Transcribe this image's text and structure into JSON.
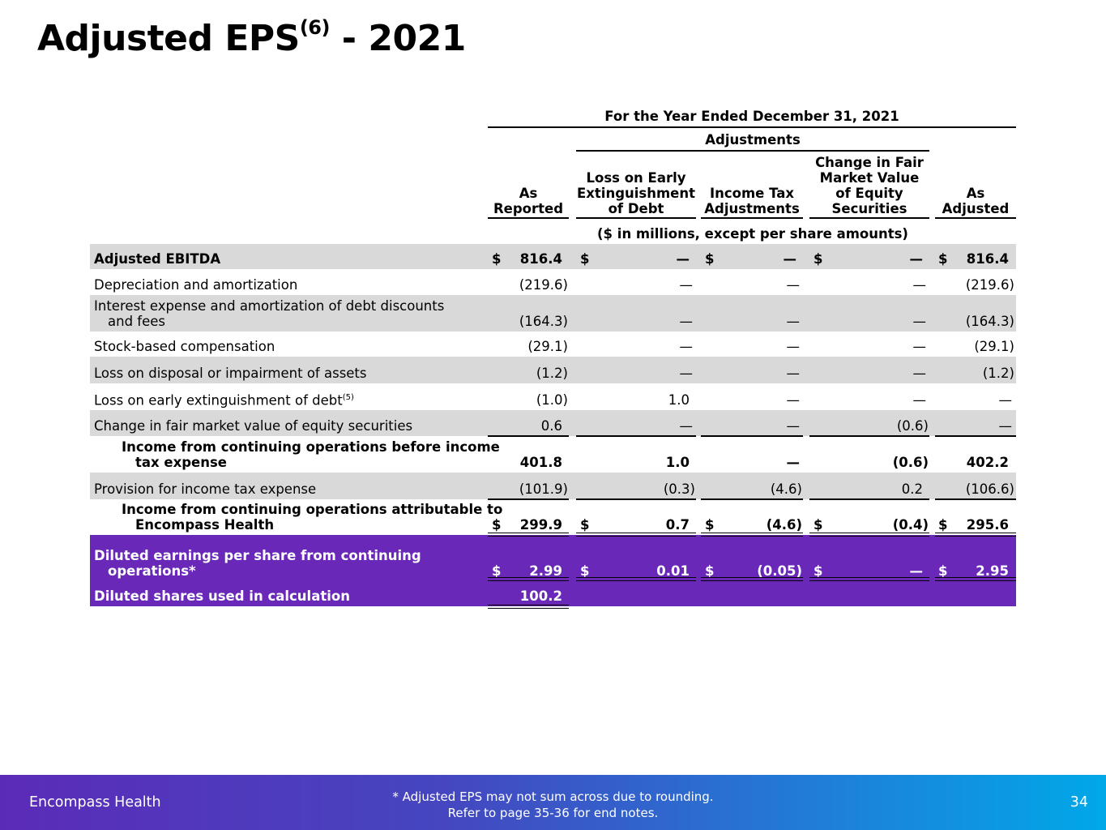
{
  "title": {
    "main": "Adjusted EPS",
    "sup": "(6)",
    "suffix": " - 2021"
  },
  "table": {
    "period_header": "For the Year Ended December 31, 2021",
    "adjustments_header": "Adjustments",
    "columns": [
      {
        "key": "reported",
        "lines": [
          "As",
          "Reported"
        ]
      },
      {
        "key": "debt",
        "lines": [
          "Loss on Early",
          "Extinguishment",
          "of Debt"
        ]
      },
      {
        "key": "tax",
        "lines": [
          "Income Tax",
          "Adjustments"
        ]
      },
      {
        "key": "equity",
        "lines": [
          "Change in Fair",
          "Market Value",
          "of Equity",
          "Securities"
        ]
      },
      {
        "key": "adjusted",
        "lines": [
          "As",
          "Adjusted"
        ]
      }
    ],
    "units": "($ in millions, except per share amounts)",
    "rows": [
      {
        "label": "Adjusted EBITDA",
        "bold": true,
        "dollar": true,
        "values": [
          "816.4",
          "—",
          "—",
          "—",
          "816.4"
        ]
      },
      {
        "label": "Depreciation and amortization",
        "values": [
          "(219.6)",
          "—",
          "—",
          "—",
          "(219.6)"
        ]
      },
      {
        "label": "Interest expense and amortization of debt discounts",
        "label2": "and fees",
        "values": [
          "(164.3)",
          "—",
          "—",
          "—",
          "(164.3)"
        ]
      },
      {
        "label": "Stock-based compensation",
        "values": [
          "(29.1)",
          "—",
          "—",
          "—",
          "(29.1)"
        ]
      },
      {
        "label": "Loss on disposal or impairment of assets",
        "values": [
          "(1.2)",
          "—",
          "—",
          "—",
          "(1.2)"
        ]
      },
      {
        "label": "Loss on early extinguishment of debt",
        "label_sup": "(5)",
        "values": [
          "(1.0)",
          "1.0",
          "—",
          "—",
          "—"
        ]
      },
      {
        "label": "Change in fair market value of equity securities",
        "values": [
          "0.6",
          "—",
          "—",
          "(0.6)",
          "—"
        ]
      },
      {
        "label": "Income from continuing operations before income",
        "label2": "tax expense",
        "values": [
          "401.8",
          "1.0",
          "—",
          "(0.6)",
          "402.2"
        ]
      },
      {
        "label": "Provision for income tax expense",
        "values": [
          "(101.9)",
          "(0.3)",
          "(4.6)",
          "0.2",
          "(106.6)"
        ]
      },
      {
        "label": "Income from continuing operations attributable to",
        "label2": "Encompass Health",
        "dollar": true,
        "values": [
          "299.9",
          "0.7",
          "(4.6)",
          "(0.4)",
          "295.6"
        ]
      },
      {
        "label": "Diluted earnings per share from continuing",
        "label2": "operations*",
        "bold": true,
        "dollar": true,
        "values": [
          "2.99",
          "0.01",
          "(0.05)",
          "—",
          "2.95"
        ]
      },
      {
        "label": "Diluted shares used in calculation",
        "bold": true,
        "values": [
          "100.2",
          "",
          "",
          "",
          ""
        ]
      }
    ],
    "currency_symbol": "$"
  },
  "footer": {
    "brand": "Encompass Health",
    "note_line1": "*  Adjusted EPS may not sum across due to rounding.",
    "note_line2": "Refer to page 35-36 for end notes.",
    "page_number": "34"
  },
  "colors": {
    "row_gray": "#d9d9d9",
    "row_purple": "#6a28b8",
    "footer_gradient_start": "#5b2bb8",
    "footer_gradient_end": "#00a8e8"
  }
}
